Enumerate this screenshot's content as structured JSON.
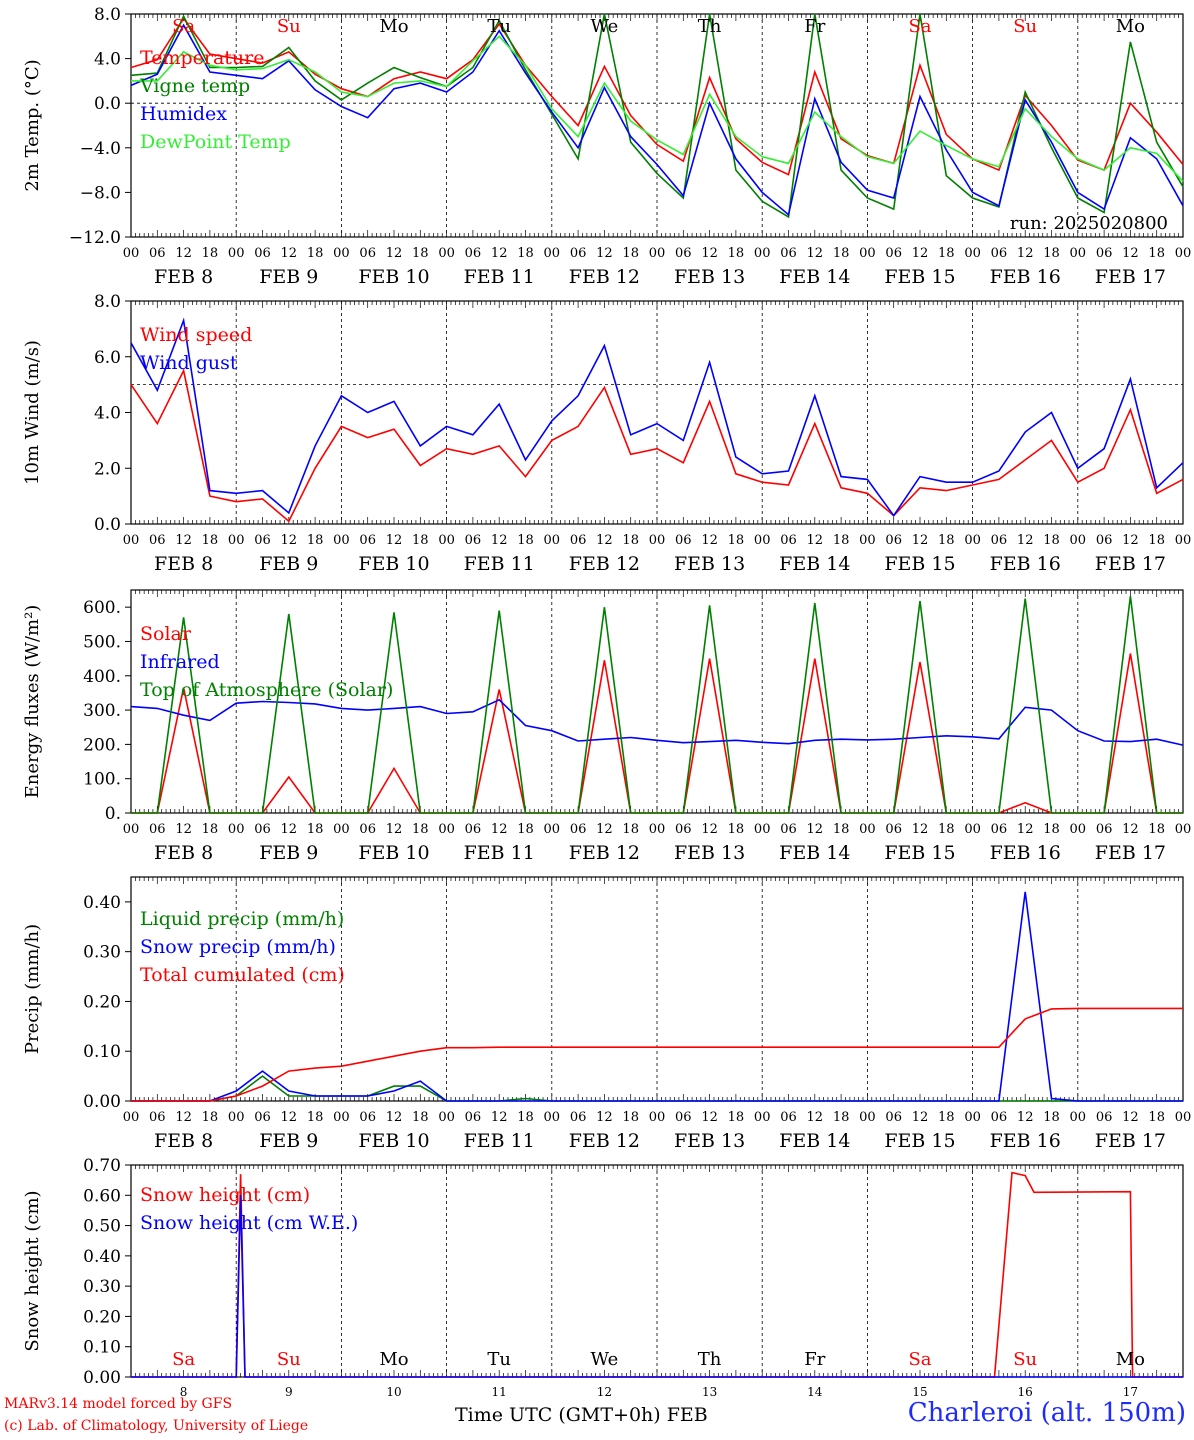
{
  "days": [
    "FEB 8",
    "FEB 9",
    "FEB 10",
    "FEB 11",
    "FEB 12",
    "FEB 13",
    "FEB 14",
    "FEB 15",
    "FEB 16",
    "FEB 17"
  ],
  "hour_ticks": [
    "00",
    "06",
    "12",
    "18"
  ],
  "weekdays": [
    {
      "label": "Sa",
      "color": "#ff0000"
    },
    {
      "label": "Su",
      "color": "#ff0000"
    },
    {
      "label": "Mo",
      "color": "#000000"
    },
    {
      "label": "Tu",
      "color": "#000000"
    },
    {
      "label": "We",
      "color": "#000000"
    },
    {
      "label": "Th",
      "color": "#000000"
    },
    {
      "label": "Fr",
      "color": "#000000"
    },
    {
      "label": "Sa",
      "color": "#ff0000"
    },
    {
      "label": "Su",
      "color": "#ff0000"
    },
    {
      "label": "Mo",
      "color": "#000000"
    }
  ],
  "day_numbers": [
    "8",
    "9",
    "10",
    "11",
    "12",
    "13",
    "14",
    "15",
    "16",
    "17"
  ],
  "colors": {
    "red": "#ff0000",
    "green": "#008000",
    "blue": "#0000ff",
    "lightgreen": "#33ee33",
    "title_blue": "#1e2bff"
  },
  "footer": {
    "credit1": "MARv3.14 model forced by GFS",
    "credit2": "(c) Lab. of Climatology, University of Liege",
    "time_title": "Time UTC (GMT+0h) FEB",
    "station": "Charleroi (alt. 150m)"
  },
  "chart_data": [
    {
      "type": "line",
      "ylabel": "2m Temp. (°C)",
      "ylim": [
        -12,
        8
      ],
      "yticks": [
        "8.0",
        "4.0",
        "0.0",
        "−4.0",
        "−8.0",
        "−12.0"
      ],
      "ref_line": 0,
      "run": "run: 2025020800",
      "x_hours": [
        0,
        6,
        12,
        18,
        24,
        30,
        36,
        42,
        48,
        54,
        60,
        66,
        72,
        78,
        84,
        90,
        96,
        102,
        108,
        114,
        120,
        126,
        132,
        138,
        144,
        150,
        156,
        162,
        168,
        174,
        180,
        186,
        192,
        198,
        204,
        210,
        216,
        222,
        228,
        234,
        240
      ],
      "series": [
        {
          "name": "Temperature",
          "color": "#ff0000",
          "values": [
            3.2,
            3.9,
            7.6,
            4.4,
            4.0,
            3.6,
            4.6,
            2.6,
            1.3,
            0.6,
            2.2,
            2.8,
            2.2,
            3.9,
            7.1,
            3.4,
            0.6,
            -2.0,
            3.3,
            -1.1,
            -3.7,
            -5.2,
            2.3,
            -3.2,
            -5.3,
            -6.4,
            2.8,
            -3.2,
            -4.7,
            -5.4,
            3.4,
            -2.8,
            -5.0,
            -6.0,
            0.7,
            -2.0,
            -5.1,
            -6.0,
            0.0,
            -2.6,
            -5.5
          ]
        },
        {
          "name": "Vigne temp",
          "color": "#008000",
          "values": [
            2.5,
            2.7,
            7.8,
            3.2,
            3.2,
            3.3,
            5.0,
            2.0,
            0.3,
            1.8,
            3.2,
            2.3,
            1.5,
            3.2,
            7.4,
            3.0,
            -1.0,
            -5.0,
            8.0,
            -3.5,
            -6.3,
            -8.5,
            8.0,
            -6.0,
            -8.8,
            -10.2,
            8.0,
            -6.0,
            -8.5,
            -9.5,
            8.0,
            -6.5,
            -8.5,
            -9.3,
            1.0,
            -4.0,
            -8.5,
            -9.8,
            5.5,
            -3.5,
            -7.5
          ]
        },
        {
          "name": "Humidex",
          "color": "#0000ff",
          "values": [
            1.6,
            2.6,
            7.0,
            2.8,
            2.5,
            2.2,
            3.8,
            1.2,
            -0.3,
            -1.3,
            1.3,
            1.8,
            1.0,
            2.8,
            6.5,
            2.7,
            -0.8,
            -4.0,
            1.4,
            -3.0,
            -5.5,
            -8.3,
            0.0,
            -5.0,
            -8.0,
            -10.0,
            0.4,
            -5.3,
            -7.8,
            -8.5,
            0.6,
            -4.2,
            -8.0,
            -9.2,
            0.3,
            -3.5,
            -8.0,
            -9.5,
            -3.1,
            -5.0,
            -9.2
          ]
        },
        {
          "name": "DewPoint Temp",
          "color": "#33ee33",
          "values": [
            2.0,
            2.0,
            4.6,
            3.4,
            3.0,
            3.1,
            3.9,
            2.8,
            1.0,
            0.6,
            1.8,
            2.0,
            1.5,
            3.8,
            6.0,
            3.4,
            -0.5,
            -3.0,
            1.8,
            -1.6,
            -3.3,
            -4.6,
            0.8,
            -3.0,
            -4.8,
            -5.4,
            -0.8,
            -3.0,
            -4.8,
            -5.4,
            -2.5,
            -3.8,
            -5.0,
            -5.7,
            -0.5,
            -3.0,
            -5.0,
            -6.0,
            -4.0,
            -4.5,
            -7.0
          ]
        }
      ]
    },
    {
      "type": "line",
      "ylabel": "10m Wind (m/s)",
      "ylim": [
        0,
        8
      ],
      "yticks": [
        "8.0",
        "6.0",
        "4.0",
        "2.0",
        "0.0"
      ],
      "ref_line": 5,
      "x_hours": [
        0,
        6,
        12,
        18,
        24,
        30,
        36,
        42,
        48,
        54,
        60,
        66,
        72,
        78,
        84,
        90,
        96,
        102,
        108,
        114,
        120,
        126,
        132,
        138,
        144,
        150,
        156,
        162,
        168,
        174,
        180,
        186,
        192,
        198,
        204,
        210,
        216,
        222,
        228,
        234,
        240
      ],
      "series": [
        {
          "name": "Wind speed",
          "color": "#ff0000",
          "values": [
            5.0,
            3.6,
            5.5,
            1.0,
            0.8,
            0.9,
            0.1,
            2.0,
            3.5,
            3.1,
            3.4,
            2.1,
            2.7,
            2.5,
            2.8,
            1.7,
            3.0,
            3.5,
            4.9,
            2.5,
            2.7,
            2.2,
            4.4,
            1.8,
            1.5,
            1.4,
            3.6,
            1.3,
            1.1,
            0.3,
            1.3,
            1.2,
            1.4,
            1.6,
            2.3,
            3.0,
            1.5,
            2.0,
            4.1,
            1.1,
            1.6
          ]
        },
        {
          "name": "Wind gust",
          "color": "#0000ff",
          "values": [
            6.5,
            4.8,
            7.3,
            1.2,
            1.1,
            1.2,
            0.4,
            2.8,
            4.6,
            4.0,
            4.4,
            2.8,
            3.5,
            3.2,
            4.3,
            2.3,
            3.7,
            4.6,
            6.4,
            3.2,
            3.6,
            3.0,
            5.8,
            2.4,
            1.8,
            1.9,
            4.6,
            1.7,
            1.6,
            0.3,
            1.7,
            1.5,
            1.5,
            1.9,
            3.3,
            4.0,
            2.0,
            2.7,
            5.2,
            1.3,
            2.2
          ]
        }
      ]
    },
    {
      "type": "line",
      "ylabel": "Energy fluxes (W/m²)",
      "ylim": [
        0,
        650
      ],
      "yticks": [
        "600.",
        "500.",
        "400.",
        "300.",
        "200.",
        "100.",
        "0."
      ],
      "x_hours": [
        0,
        6,
        12,
        18,
        24,
        30,
        36,
        42,
        48,
        54,
        60,
        66,
        72,
        78,
        84,
        90,
        96,
        102,
        108,
        114,
        120,
        126,
        132,
        138,
        144,
        150,
        156,
        162,
        168,
        174,
        180,
        186,
        192,
        198,
        204,
        210,
        216,
        222,
        228,
        234,
        240
      ],
      "series": [
        {
          "name": "Solar",
          "color": "#ff0000",
          "values": [
            0,
            0,
            365,
            0,
            0,
            0,
            105,
            0,
            0,
            0,
            130,
            0,
            0,
            0,
            360,
            0,
            0,
            0,
            445,
            0,
            0,
            0,
            450,
            0,
            0,
            0,
            450,
            0,
            0,
            0,
            440,
            0,
            0,
            0,
            30,
            0,
            0,
            0,
            465,
            0,
            0
          ]
        },
        {
          "name": "Infrared",
          "color": "#0000ff",
          "values": [
            310,
            305,
            285,
            270,
            320,
            325,
            322,
            318,
            305,
            300,
            305,
            310,
            290,
            295,
            330,
            255,
            240,
            210,
            215,
            220,
            212,
            205,
            208,
            212,
            206,
            202,
            212,
            215,
            213,
            215,
            220,
            225,
            222,
            216,
            308,
            300,
            240,
            210,
            208,
            215,
            198
          ]
        },
        {
          "name": "Top of Atmosphere (Solar)",
          "color": "#008000",
          "values": [
            0,
            0,
            570,
            0,
            0,
            0,
            580,
            0,
            0,
            0,
            585,
            0,
            0,
            0,
            590,
            0,
            0,
            0,
            600,
            0,
            0,
            0,
            605,
            0,
            0,
            0,
            612,
            0,
            0,
            0,
            618,
            0,
            0,
            0,
            625,
            0,
            0,
            0,
            632,
            0,
            0
          ]
        }
      ]
    },
    {
      "type": "line",
      "ylabel": "Precip (mm/h)",
      "ylim": [
        0,
        0.45
      ],
      "yticks": [
        "0.40",
        "0.30",
        "0.20",
        "0.10",
        "0.00"
      ],
      "x_hours": [
        0,
        6,
        12,
        18,
        24,
        30,
        36,
        42,
        48,
        54,
        60,
        66,
        72,
        78,
        84,
        90,
        96,
        102,
        108,
        114,
        120,
        126,
        132,
        138,
        144,
        150,
        156,
        162,
        168,
        174,
        180,
        186,
        192,
        198,
        204,
        210,
        216,
        222,
        228,
        234,
        240
      ],
      "series": [
        {
          "name": "Liquid precip (mm/h)",
          "color": "#008000",
          "values": [
            0,
            0,
            0,
            0,
            0.01,
            0.05,
            0.01,
            0.01,
            0.01,
            0.01,
            0.03,
            0.03,
            0,
            0,
            0,
            0.005,
            0,
            0,
            0,
            0,
            0,
            0,
            0,
            0,
            0,
            0,
            0,
            0,
            0,
            0,
            0,
            0,
            0,
            0,
            0,
            0,
            0,
            0,
            0,
            0,
            0
          ]
        },
        {
          "name": "Snow precip (mm/h)",
          "color": "#0000ff",
          "values": [
            0,
            0,
            0,
            0,
            0.02,
            0.06,
            0.02,
            0.01,
            0.01,
            0.01,
            0.02,
            0.04,
            0,
            0,
            0,
            0,
            0,
            0,
            0,
            0,
            0,
            0,
            0,
            0,
            0,
            0,
            0,
            0,
            0,
            0,
            0,
            0,
            0,
            0,
            0.42,
            0.005,
            0,
            0,
            0,
            0,
            0
          ]
        },
        {
          "name": "Total cumulated (cm)",
          "color": "#ff0000",
          "values": [
            0,
            0,
            0,
            0,
            0.01,
            0.03,
            0.06,
            0.066,
            0.07,
            0.08,
            0.09,
            0.1,
            0.107,
            0.107,
            0.108,
            0.108,
            0.108,
            0.108,
            0.108,
            0.108,
            0.108,
            0.108,
            0.108,
            0.108,
            0.108,
            0.108,
            0.108,
            0.108,
            0.108,
            0.108,
            0.108,
            0.108,
            0.108,
            0.108,
            0.165,
            0.185,
            0.186,
            0.186,
            0.186,
            0.186,
            0.186
          ]
        }
      ]
    },
    {
      "type": "line",
      "ylabel": "Snow height (cm)",
      "ylim": [
        0,
        0.7
      ],
      "yticks": [
        "0.70",
        "0.60",
        "0.50",
        "0.40",
        "0.30",
        "0.20",
        "0.10",
        "0.00"
      ],
      "x_hours": [
        0,
        24,
        25,
        26,
        27,
        197,
        201,
        204,
        206,
        228,
        228.5,
        240
      ],
      "series": [
        {
          "name": "Snow height (cm)",
          "color": "#ff0000",
          "values": [
            0,
            0,
            0.67,
            0,
            0,
            0,
            0.675,
            0.665,
            0.61,
            0.612,
            0,
            0
          ]
        },
        {
          "name": "Snow height (cm W.E.)",
          "color": "#0000ff",
          "values": [
            0,
            0,
            0.6,
            0,
            0,
            0,
            0,
            0,
            0,
            0,
            0,
            0
          ]
        }
      ]
    }
  ]
}
